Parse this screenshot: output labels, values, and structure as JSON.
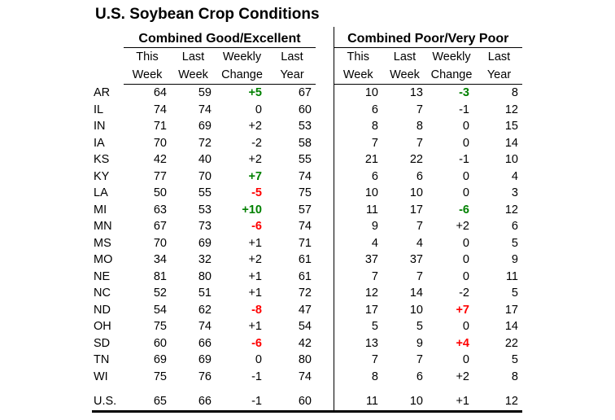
{
  "title": "U.S. Soybean Crop Conditions",
  "sections": {
    "left": "Combined Good/Excellent",
    "right": "Combined Poor/Very Poor"
  },
  "column_headers": {
    "line1": [
      "This",
      "Last",
      "Weekly",
      "Last"
    ],
    "line2": [
      "Week",
      "Week",
      "Change",
      "Year"
    ]
  },
  "colors": {
    "improvement_green": "#008000",
    "deterioration_red": "#ff0000",
    "text": "#000000",
    "background": "#ffffff"
  },
  "rows": [
    {
      "state": "AR",
      "good_excellent": {
        "this_week": "64",
        "last_week": "59",
        "weekly_change": "+5",
        "change_style": "green",
        "last_year": "67"
      },
      "poor_very_poor": {
        "this_week": "10",
        "last_week": "13",
        "weekly_change": "-3",
        "change_style": "green",
        "last_year": "8"
      }
    },
    {
      "state": "IL",
      "good_excellent": {
        "this_week": "74",
        "last_week": "74",
        "weekly_change": "0",
        "change_style": "plain",
        "last_year": "60"
      },
      "poor_very_poor": {
        "this_week": "6",
        "last_week": "7",
        "weekly_change": "-1",
        "change_style": "plain",
        "last_year": "12"
      }
    },
    {
      "state": "IN",
      "good_excellent": {
        "this_week": "71",
        "last_week": "69",
        "weekly_change": "+2",
        "change_style": "plain",
        "last_year": "53"
      },
      "poor_very_poor": {
        "this_week": "8",
        "last_week": "8",
        "weekly_change": "0",
        "change_style": "plain",
        "last_year": "15"
      }
    },
    {
      "state": "IA",
      "good_excellent": {
        "this_week": "70",
        "last_week": "72",
        "weekly_change": "-2",
        "change_style": "plain",
        "last_year": "58"
      },
      "poor_very_poor": {
        "this_week": "7",
        "last_week": "7",
        "weekly_change": "0",
        "change_style": "plain",
        "last_year": "14"
      }
    },
    {
      "state": "KS",
      "good_excellent": {
        "this_week": "42",
        "last_week": "40",
        "weekly_change": "+2",
        "change_style": "plain",
        "last_year": "55"
      },
      "poor_very_poor": {
        "this_week": "21",
        "last_week": "22",
        "weekly_change": "-1",
        "change_style": "plain",
        "last_year": "10"
      }
    },
    {
      "state": "KY",
      "good_excellent": {
        "this_week": "77",
        "last_week": "70",
        "weekly_change": "+7",
        "change_style": "green",
        "last_year": "74"
      },
      "poor_very_poor": {
        "this_week": "6",
        "last_week": "6",
        "weekly_change": "0",
        "change_style": "plain",
        "last_year": "4"
      }
    },
    {
      "state": "LA",
      "good_excellent": {
        "this_week": "50",
        "last_week": "55",
        "weekly_change": "-5",
        "change_style": "red",
        "last_year": "75"
      },
      "poor_very_poor": {
        "this_week": "10",
        "last_week": "10",
        "weekly_change": "0",
        "change_style": "plain",
        "last_year": "3"
      }
    },
    {
      "state": "MI",
      "good_excellent": {
        "this_week": "63",
        "last_week": "53",
        "weekly_change": "+10",
        "change_style": "green",
        "last_year": "57"
      },
      "poor_very_poor": {
        "this_week": "11",
        "last_week": "17",
        "weekly_change": "-6",
        "change_style": "green",
        "last_year": "12"
      }
    },
    {
      "state": "MN",
      "good_excellent": {
        "this_week": "67",
        "last_week": "73",
        "weekly_change": "-6",
        "change_style": "red",
        "last_year": "74"
      },
      "poor_very_poor": {
        "this_week": "9",
        "last_week": "7",
        "weekly_change": "+2",
        "change_style": "plain",
        "last_year": "6"
      }
    },
    {
      "state": "MS",
      "good_excellent": {
        "this_week": "70",
        "last_week": "69",
        "weekly_change": "+1",
        "change_style": "plain",
        "last_year": "71"
      },
      "poor_very_poor": {
        "this_week": "4",
        "last_week": "4",
        "weekly_change": "0",
        "change_style": "plain",
        "last_year": "5"
      }
    },
    {
      "state": "MO",
      "good_excellent": {
        "this_week": "34",
        "last_week": "32",
        "weekly_change": "+2",
        "change_style": "plain",
        "last_year": "61"
      },
      "poor_very_poor": {
        "this_week": "37",
        "last_week": "37",
        "weekly_change": "0",
        "change_style": "plain",
        "last_year": "9"
      }
    },
    {
      "state": "NE",
      "good_excellent": {
        "this_week": "81",
        "last_week": "80",
        "weekly_change": "+1",
        "change_style": "plain",
        "last_year": "61"
      },
      "poor_very_poor": {
        "this_week": "7",
        "last_week": "7",
        "weekly_change": "0",
        "change_style": "plain",
        "last_year": "11"
      }
    },
    {
      "state": "NC",
      "good_excellent": {
        "this_week": "52",
        "last_week": "51",
        "weekly_change": "+1",
        "change_style": "plain",
        "last_year": "72"
      },
      "poor_very_poor": {
        "this_week": "12",
        "last_week": "14",
        "weekly_change": "-2",
        "change_style": "plain",
        "last_year": "5"
      }
    },
    {
      "state": "ND",
      "good_excellent": {
        "this_week": "54",
        "last_week": "62",
        "weekly_change": "-8",
        "change_style": "red",
        "last_year": "47"
      },
      "poor_very_poor": {
        "this_week": "17",
        "last_week": "10",
        "weekly_change": "+7",
        "change_style": "red",
        "last_year": "17"
      }
    },
    {
      "state": "OH",
      "good_excellent": {
        "this_week": "75",
        "last_week": "74",
        "weekly_change": "+1",
        "change_style": "plain",
        "last_year": "54"
      },
      "poor_very_poor": {
        "this_week": "5",
        "last_week": "5",
        "weekly_change": "0",
        "change_style": "plain",
        "last_year": "14"
      }
    },
    {
      "state": "SD",
      "good_excellent": {
        "this_week": "60",
        "last_week": "66",
        "weekly_change": "-6",
        "change_style": "red",
        "last_year": "42"
      },
      "poor_very_poor": {
        "this_week": "13",
        "last_week": "9",
        "weekly_change": "+4",
        "change_style": "red",
        "last_year": "22"
      }
    },
    {
      "state": "TN",
      "good_excellent": {
        "this_week": "69",
        "last_week": "69",
        "weekly_change": "0",
        "change_style": "plain",
        "last_year": "80"
      },
      "poor_very_poor": {
        "this_week": "7",
        "last_week": "7",
        "weekly_change": "0",
        "change_style": "plain",
        "last_year": "5"
      }
    },
    {
      "state": "WI",
      "good_excellent": {
        "this_week": "75",
        "last_week": "76",
        "weekly_change": "-1",
        "change_style": "plain",
        "last_year": "74"
      },
      "poor_very_poor": {
        "this_week": "8",
        "last_week": "6",
        "weekly_change": "+2",
        "change_style": "plain",
        "last_year": "8"
      }
    }
  ],
  "us_row": {
    "state": "U.S.",
    "good_excellent": {
      "this_week": "65",
      "last_week": "66",
      "weekly_change": "-1",
      "change_style": "plain",
      "last_year": "60"
    },
    "poor_very_poor": {
      "this_week": "11",
      "last_week": "10",
      "weekly_change": "+1",
      "change_style": "plain",
      "last_year": "12"
    }
  }
}
